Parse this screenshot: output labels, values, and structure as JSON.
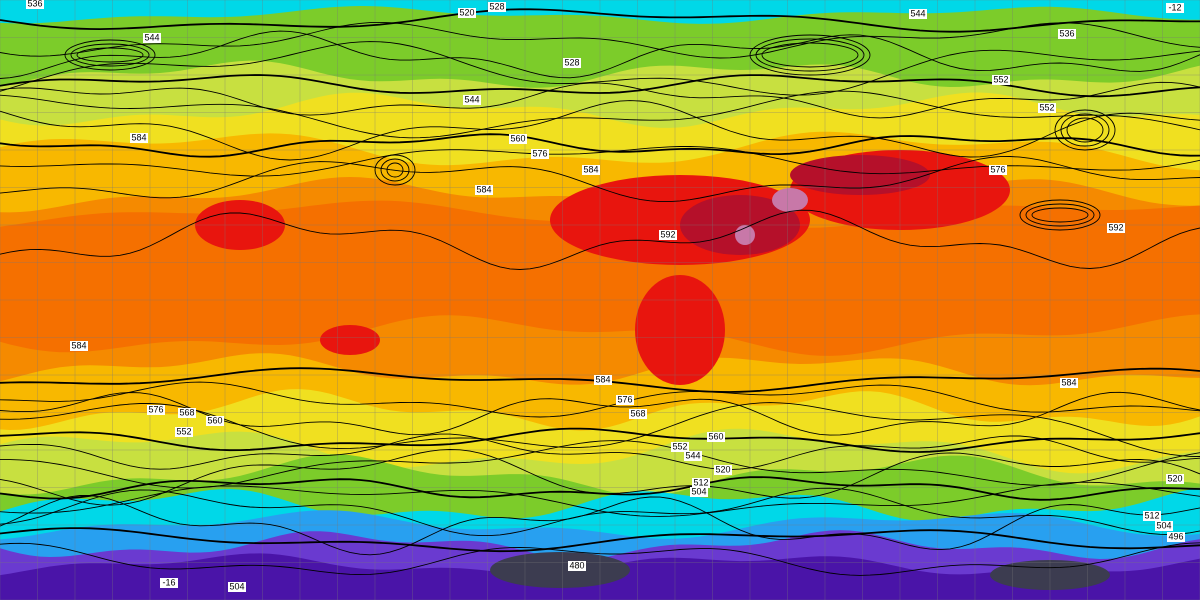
{
  "contour_labels": [
    "536",
    "520",
    "528",
    "544",
    "536",
    "544",
    "528",
    "552",
    "552",
    "544",
    "584",
    "560",
    "576",
    "584",
    "584",
    "576",
    "592",
    "592",
    "584",
    "584",
    "576",
    "568",
    "584",
    "576",
    "568",
    "560",
    "552",
    "552",
    "560",
    "544",
    "520",
    "512",
    "504",
    "520",
    "512",
    "504",
    "496",
    "480",
    "504",
    "-12",
    "-16"
  ]
}
